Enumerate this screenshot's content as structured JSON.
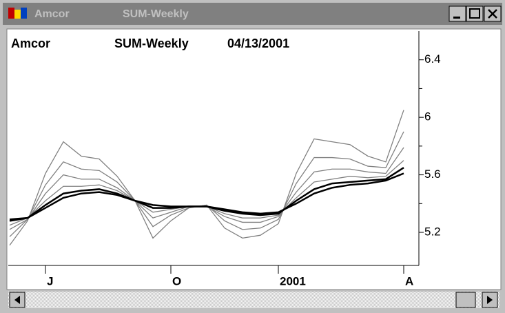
{
  "window": {
    "title_app": "Amcor",
    "title_doc": "SUM-Weekly"
  },
  "chart_data": {
    "type": "line",
    "title": "Amcor",
    "subtitle": "SUM-Weekly",
    "date": "04/13/2001",
    "categories": [
      null,
      null,
      "J",
      null,
      null,
      null,
      null,
      null,
      null,
      "O",
      null,
      null,
      null,
      null,
      null,
      "2001",
      null,
      null,
      null,
      null,
      null,
      null,
      "A"
    ],
    "series": [
      {
        "color": "#808080",
        "values": [
          5.11,
          5.28,
          5.61,
          5.83,
          5.73,
          5.71,
          5.59,
          5.42,
          5.16,
          5.28,
          5.37,
          5.39,
          5.23,
          5.16,
          5.18,
          5.26,
          5.61,
          5.85,
          5.83,
          5.81,
          5.73,
          5.69,
          6.05
        ]
      },
      {
        "color": "#808080",
        "values": [
          5.17,
          5.29,
          5.53,
          5.69,
          5.64,
          5.63,
          5.55,
          5.42,
          5.24,
          5.32,
          5.37,
          5.39,
          5.28,
          5.22,
          5.23,
          5.29,
          5.54,
          5.72,
          5.72,
          5.71,
          5.66,
          5.65,
          5.9
        ]
      },
      {
        "color": "#808080",
        "values": [
          5.22,
          5.29,
          5.47,
          5.6,
          5.57,
          5.57,
          5.51,
          5.42,
          5.3,
          5.34,
          5.38,
          5.38,
          5.31,
          5.27,
          5.27,
          5.31,
          5.48,
          5.62,
          5.64,
          5.64,
          5.62,
          5.61,
          5.79
        ]
      },
      {
        "color": "#808080",
        "values": [
          5.25,
          5.3,
          5.42,
          5.52,
          5.52,
          5.53,
          5.49,
          5.42,
          5.34,
          5.36,
          5.38,
          5.38,
          5.33,
          5.3,
          5.3,
          5.32,
          5.44,
          5.55,
          5.57,
          5.59,
          5.58,
          5.59,
          5.7
        ]
      },
      {
        "color": "#000000",
        "values": [
          5.28,
          5.3,
          5.39,
          5.47,
          5.49,
          5.5,
          5.47,
          5.42,
          5.37,
          5.37,
          5.38,
          5.38,
          5.35,
          5.33,
          5.32,
          5.33,
          5.42,
          5.5,
          5.54,
          5.55,
          5.56,
          5.57,
          5.65
        ]
      },
      {
        "color": "#000000",
        "values": [
          5.29,
          5.3,
          5.37,
          5.44,
          5.47,
          5.48,
          5.46,
          5.42,
          5.39,
          5.38,
          5.38,
          5.38,
          5.36,
          5.34,
          5.33,
          5.34,
          5.4,
          5.47,
          5.51,
          5.53,
          5.54,
          5.56,
          5.61
        ]
      }
    ],
    "ylim": [
      4.97,
      6.6
    ],
    "yticks": [
      6.4,
      6,
      5.6,
      5.2
    ],
    "yminorticks": [
      6.2,
      5.8,
      5.4
    ],
    "y_axis_side": "right"
  }
}
